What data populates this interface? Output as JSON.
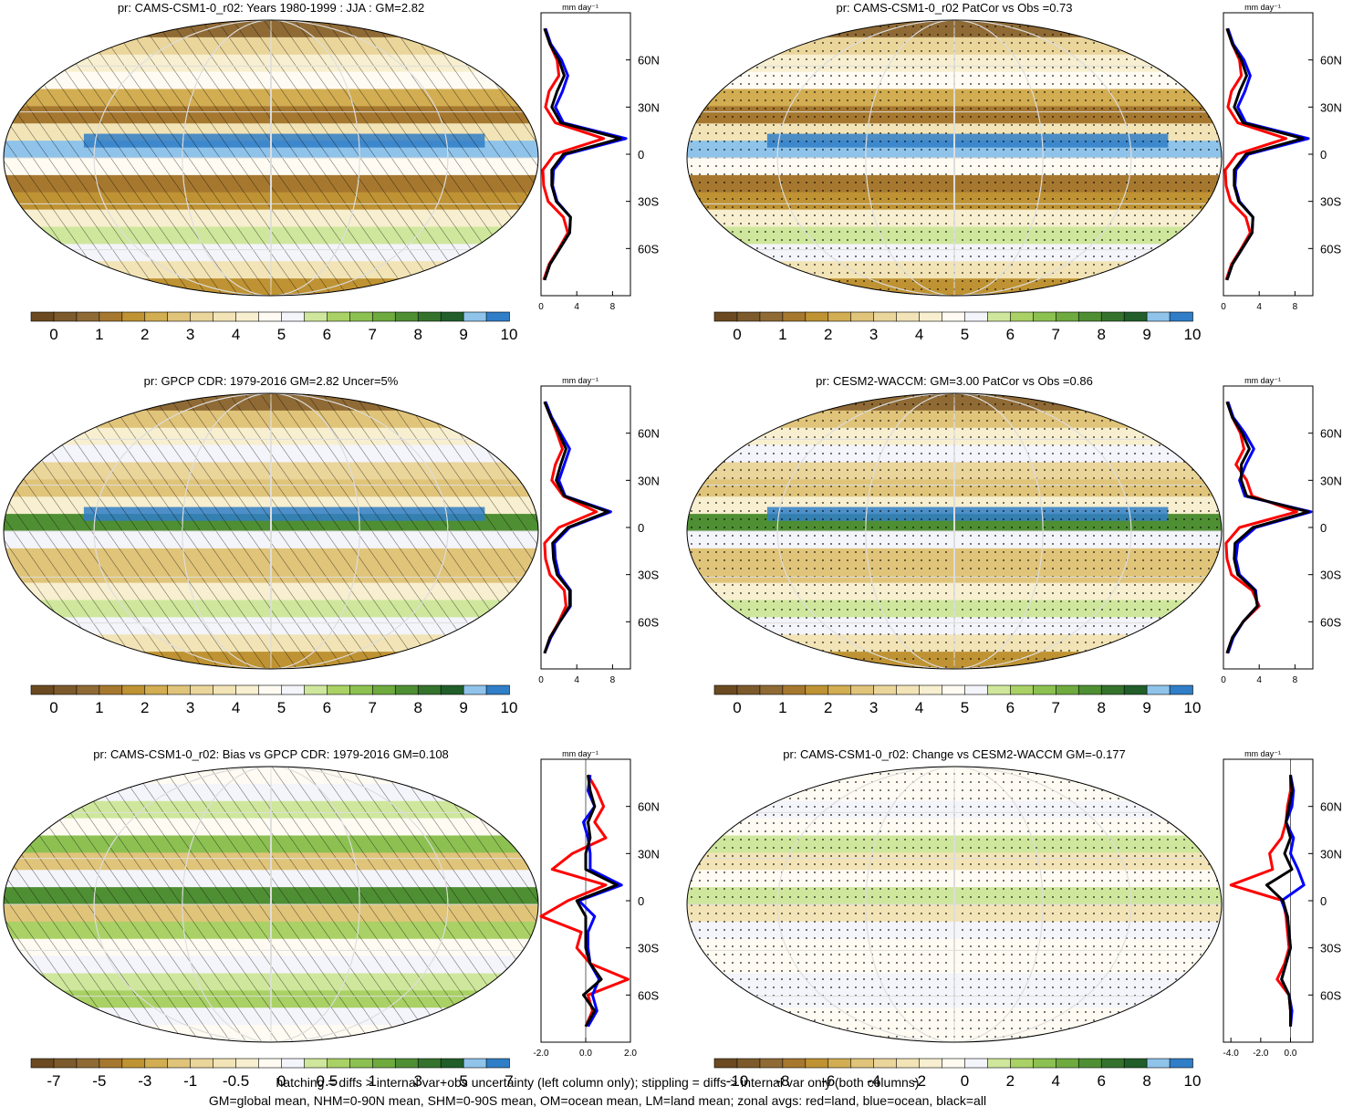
{
  "colors": {
    "scale": [
      "#6b4a21",
      "#7d5a2c",
      "#8f6a35",
      "#a6782f",
      "#bf9333",
      "#d2ad52",
      "#e0c47a",
      "#ead59b",
      "#f2e4b6",
      "#f7efcf",
      "#fffbf2",
      "#f4f4fb",
      "#cfe79c",
      "#a9d165",
      "#8cc152",
      "#6eaa3e",
      "#4f8f33",
      "#35732c",
      "#215e2a",
      "#8fc3ea",
      "#2f7ec7"
    ],
    "land": "red",
    "ocean": "blue",
    "all": "black"
  },
  "footer": {
    "line1": "hatching = diffs > internal var+obs uncertainty (left column only); stippling = diffs > internal var only (both columns)",
    "line2": "GM=global mean, NHM=0-90N mean, SHM=0-90S mean, OM=ocean mean, LM=land mean; zonal avgs: red=land, blue=ocean, black=all"
  },
  "chart_data": [
    {
      "type": "heatmap",
      "title": "pr: CAMS-CSM1-0_r02: Years 1980-1999 : JJA : GM=2.82",
      "pattern": "hatching",
      "colorbar_labels": [
        "0",
        "1",
        "2",
        "3",
        "4",
        "5",
        "6",
        "7",
        "8",
        "9",
        "10"
      ],
      "zonal": {
        "xlabel": "mm day⁻¹",
        "xticks": [
          "0",
          "4",
          "8"
        ],
        "xlim": [
          0,
          10
        ],
        "yticks": [
          "60N",
          "30N",
          "0",
          "30S",
          "60S"
        ],
        "lat": [
          80,
          70,
          60,
          50,
          40,
          30,
          20,
          10,
          0,
          -10,
          -20,
          -30,
          -40,
          -50,
          -60,
          -70,
          -80
        ],
        "series": [
          {
            "name": "land",
            "values": [
              0.4,
              1.0,
              1.8,
              2.0,
              0.9,
              0.5,
              1.6,
              7.0,
              1.5,
              0.2,
              0.3,
              0.8,
              2.5,
              3.0,
              2.0,
              0.9,
              0.3
            ]
          },
          {
            "name": "ocean",
            "values": [
              0.5,
              1.1,
              2.3,
              3.0,
              2.4,
              1.6,
              2.5,
              9.5,
              2.8,
              1.4,
              1.3,
              1.8,
              3.3,
              3.2,
              2.1,
              1.0,
              0.4
            ]
          },
          {
            "name": "all",
            "values": [
              0.4,
              1.0,
              2.0,
              2.6,
              1.8,
              1.2,
              2.2,
              8.9,
              2.5,
              1.2,
              1.2,
              1.7,
              3.3,
              3.2,
              2.1,
              1.0,
              0.4
            ]
          }
        ]
      }
    },
    {
      "type": "heatmap",
      "title": "pr: CAMS-CSM1-0_r02 PatCor vs Obs =0.73",
      "pattern": "stippling",
      "colorbar_labels": [
        "0",
        "1",
        "2",
        "3",
        "4",
        "5",
        "6",
        "7",
        "8",
        "9",
        "10"
      ],
      "zonal": {
        "xlabel": "mm day⁻¹",
        "xticks": [
          "0",
          "4",
          "8"
        ],
        "xlim": [
          0,
          10
        ],
        "yticks": [
          "60N",
          "30N",
          "0",
          "30S",
          "60S"
        ],
        "lat": [
          80,
          70,
          60,
          50,
          40,
          30,
          20,
          10,
          0,
          -10,
          -20,
          -30,
          -40,
          -50,
          -60,
          -70,
          -80
        ],
        "series": [
          {
            "name": "land",
            "values": [
              0.4,
              1.0,
              1.8,
              2.0,
              0.9,
              0.5,
              1.6,
              7.0,
              1.5,
              0.2,
              0.3,
              0.8,
              2.5,
              3.0,
              2.0,
              0.9,
              0.3
            ]
          },
          {
            "name": "ocean",
            "values": [
              0.5,
              1.1,
              2.3,
              3.0,
              2.4,
              1.6,
              2.5,
              9.5,
              2.8,
              1.4,
              1.3,
              1.8,
              3.3,
              3.2,
              2.1,
              1.0,
              0.4
            ]
          },
          {
            "name": "all",
            "values": [
              0.4,
              1.0,
              2.0,
              2.6,
              1.8,
              1.2,
              2.2,
              8.9,
              2.5,
              1.2,
              1.2,
              1.7,
              3.3,
              3.2,
              2.1,
              1.0,
              0.4
            ]
          }
        ]
      }
    },
    {
      "type": "heatmap",
      "title": "pr: GPCP CDR: 1979-2016 GM=2.82 Uncer=5%",
      "pattern": "hatching",
      "colorbar_labels": [
        "0",
        "1",
        "2",
        "3",
        "4",
        "5",
        "6",
        "7",
        "8",
        "9",
        "10"
      ],
      "zonal": {
        "xlabel": "mm day⁻¹",
        "xticks": [
          "0",
          "4",
          "8"
        ],
        "xlim": [
          0,
          10
        ],
        "yticks": [
          "60N",
          "30N",
          "0",
          "30S",
          "60S"
        ],
        "lat": [
          80,
          70,
          60,
          50,
          40,
          30,
          20,
          10,
          0,
          -10,
          -20,
          -30,
          -40,
          -50,
          -60,
          -70,
          -80
        ],
        "series": [
          {
            "name": "land",
            "values": [
              0.4,
              1.1,
              1.8,
              2.4,
              1.6,
              1.2,
              2.5,
              6.2,
              2.0,
              0.4,
              0.5,
              1.0,
              2.6,
              2.8,
              2.0,
              1.0,
              0.4
            ]
          },
          {
            "name": "ocean",
            "values": [
              0.5,
              1.2,
              2.2,
              3.2,
              2.6,
              2.0,
              2.7,
              7.8,
              3.2,
              1.5,
              1.6,
              2.0,
              3.3,
              3.3,
              2.1,
              1.1,
              0.4
            ]
          },
          {
            "name": "all",
            "values": [
              0.4,
              1.1,
              2.0,
              2.8,
              2.2,
              1.7,
              2.6,
              7.5,
              3.0,
              1.3,
              1.4,
              1.8,
              3.2,
              3.2,
              2.1,
              1.0,
              0.4
            ]
          }
        ]
      }
    },
    {
      "type": "heatmap",
      "title": "pr: CESM2-WACCM: GM=3.00 PatCor vs Obs =0.86",
      "pattern": "stippling",
      "colorbar_labels": [
        "0",
        "1",
        "2",
        "3",
        "4",
        "5",
        "6",
        "7",
        "8",
        "9",
        "10"
      ],
      "zonal": {
        "xlabel": "mm day⁻¹",
        "xticks": [
          "0",
          "4",
          "8"
        ],
        "xlim": [
          0,
          10
        ],
        "yticks": [
          "60N",
          "30N",
          "0",
          "30S",
          "60S"
        ],
        "lat": [
          80,
          70,
          60,
          50,
          40,
          30,
          20,
          10,
          0,
          -10,
          -20,
          -30,
          -40,
          -50,
          -60,
          -70,
          -80
        ],
        "series": [
          {
            "name": "land",
            "values": [
              0.4,
              1.0,
              1.9,
              2.3,
              1.4,
              2.6,
              3.2,
              8.2,
              1.8,
              0.3,
              0.4,
              0.9,
              3.2,
              4.0,
              2.2,
              1.0,
              0.4
            ]
          },
          {
            "name": "ocean",
            "values": [
              0.5,
              1.1,
              2.4,
              3.4,
              2.5,
              1.8,
              2.4,
              9.8,
              3.6,
              1.6,
              1.4,
              1.8,
              3.6,
              3.8,
              2.2,
              1.1,
              0.5
            ]
          },
          {
            "name": "all",
            "values": [
              0.4,
              1.0,
              2.1,
              2.9,
              2.0,
              2.0,
              2.6,
              9.5,
              3.3,
              1.3,
              1.2,
              1.6,
              3.5,
              3.8,
              2.2,
              1.0,
              0.4
            ]
          }
        ]
      }
    },
    {
      "type": "heatmap",
      "title": "pr: CAMS-CSM1-0_r02: Bias vs GPCP CDR: 1979-2016 GM=0.108",
      "pattern": "hatching",
      "colorbar_labels": [
        "-7",
        "-5",
        "-3",
        "-1",
        "-0.5",
        "0",
        "0.5",
        "1",
        "3",
        "5",
        "7"
      ],
      "zonal": {
        "xlabel": "mm day⁻¹",
        "xticks": [
          "-2.0",
          "0.0",
          "2.0"
        ],
        "xlim": [
          -2.0,
          2.0
        ],
        "yticks": [
          "60N",
          "30N",
          "0",
          "30S",
          "60S"
        ],
        "lat": [
          80,
          70,
          60,
          50,
          40,
          30,
          20,
          10,
          0,
          -10,
          -20,
          -30,
          -40,
          -50,
          -60,
          -70,
          -80
        ],
        "series": [
          {
            "name": "land",
            "values": [
              0.1,
              0.5,
              0.8,
              0.4,
              0.9,
              -0.6,
              -1.5,
              0.9,
              -0.8,
              -2.0,
              -0.2,
              -0.4,
              0.2,
              1.9,
              0.1,
              0.3,
              0.0
            ]
          },
          {
            "name": "ocean",
            "values": [
              0.2,
              0.1,
              0.4,
              -0.1,
              0.1,
              0.2,
              0.2,
              1.6,
              -0.3,
              0.4,
              0.1,
              0.1,
              0.2,
              0.6,
              0.3,
              0.5,
              0.1
            ]
          },
          {
            "name": "all",
            "values": [
              0.1,
              0.2,
              0.4,
              0.1,
              0.2,
              0.0,
              0.0,
              1.4,
              -0.4,
              0.0,
              0.0,
              0.0,
              0.2,
              0.7,
              -0.1,
              0.4,
              0.0
            ]
          }
        ]
      }
    },
    {
      "type": "heatmap",
      "title": "pr: CAMS-CSM1-0_r02: Change vs CESM2-WACCM GM=-0.177",
      "pattern": "stippling",
      "colorbar_labels": [
        "-10",
        "-8",
        "-6",
        "-4",
        "-2",
        "0",
        "2",
        "4",
        "6",
        "8",
        "10"
      ],
      "zonal": {
        "xlabel": "mm day⁻¹",
        "xticks": [
          "-4.0",
          "-2.0",
          "0.0"
        ],
        "xlim": [
          -4.5,
          1.5
        ],
        "yticks": [
          "60N",
          "30N",
          "0",
          "30S",
          "60S"
        ],
        "lat": [
          80,
          70,
          60,
          50,
          40,
          30,
          20,
          10,
          0,
          -10,
          -20,
          -30,
          -40,
          -50,
          -60,
          -70,
          -80
        ],
        "series": [
          {
            "name": "land",
            "values": [
              0.0,
              0.0,
              -0.2,
              -0.3,
              -0.6,
              -1.4,
              -1.2,
              -4.0,
              -0.5,
              -0.3,
              -0.2,
              -0.1,
              -0.4,
              -0.9,
              -0.1,
              0.0,
              0.0
            ]
          },
          {
            "name": "ocean",
            "values": [
              0.0,
              0.2,
              0.1,
              -0.3,
              0.2,
              0.0,
              0.5,
              0.9,
              -0.6,
              -0.2,
              -0.1,
              0.0,
              -0.3,
              -0.6,
              -0.1,
              0.1,
              0.0
            ]
          },
          {
            "name": "all",
            "values": [
              0.0,
              0.1,
              -0.1,
              -0.3,
              0.0,
              -0.4,
              0.1,
              -1.6,
              -0.5,
              -0.2,
              -0.1,
              0.0,
              -0.3,
              -0.6,
              -0.1,
              0.0,
              0.0
            ]
          }
        ]
      }
    }
  ]
}
